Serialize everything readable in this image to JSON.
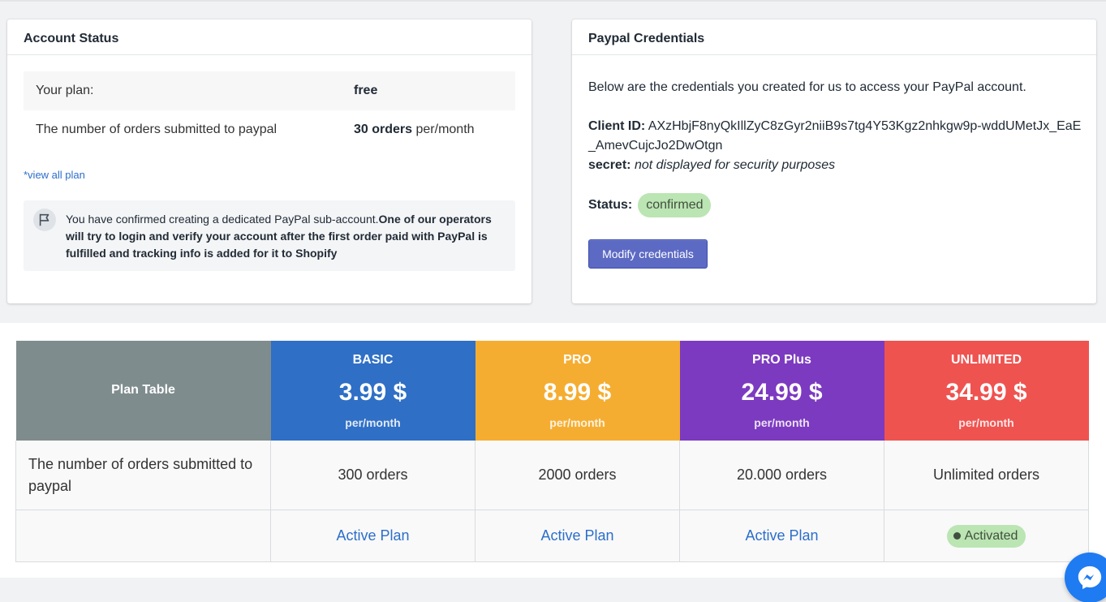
{
  "account": {
    "title": "Account Status",
    "plan_label": "Your plan:",
    "plan_value": "free",
    "orders_label": "The number of orders submitted to paypal",
    "orders_count": "30 orders",
    "orders_period": "per/month",
    "view_all_link": "*view all plan",
    "notice_normal": "You have confirmed creating a dedicated PayPal sub-account.",
    "notice_bold": "One of our operators will try to login and verify your account after the first order paid with PayPal is fulfilled and tracking info is added for it to Shopify"
  },
  "paypal": {
    "title": "Paypal Credentials",
    "intro": "Below are the credentials you created for us to access your PayPal account.",
    "client_id_label": "Client ID:",
    "client_id_value": "AXzHbjF8nyQkIllZyC8zGyr2niiB9s7tg4Y53Kgz2nhkgw9p-wddUMetJx_EaE_AmevCujcJo2DwOtgn",
    "secret_label": "secret:",
    "secret_value": "not displayed for security purposes",
    "status_label": "Status:",
    "status_value": "confirmed",
    "modify_button": "Modify credentials"
  },
  "plans": {
    "table_title": "Plan Table",
    "orders_row_label": "The number of orders submitted to paypal",
    "items": [
      {
        "name": "BASIC",
        "price": "3.99 $",
        "period": "per/month",
        "orders": "300 orders",
        "action": "Active Plan",
        "color": "#2f6fc6"
      },
      {
        "name": "PRO",
        "price": "8.99 $",
        "period": "per/month",
        "orders": "2000 orders",
        "action": "Active Plan",
        "color": "#f5ad31"
      },
      {
        "name": "PRO Plus",
        "price": "24.99 $",
        "period": "per/month",
        "orders": "20.000 orders",
        "action": "Active Plan",
        "color": "#7c3ac0"
      },
      {
        "name": "UNLIMITED",
        "price": "34.99 $",
        "period": "per/month",
        "orders": "Unlimited orders",
        "action": "Activated",
        "color": "#ef5350"
      }
    ]
  },
  "icons": {
    "notice": "flag-icon",
    "chat": "messenger-icon"
  }
}
